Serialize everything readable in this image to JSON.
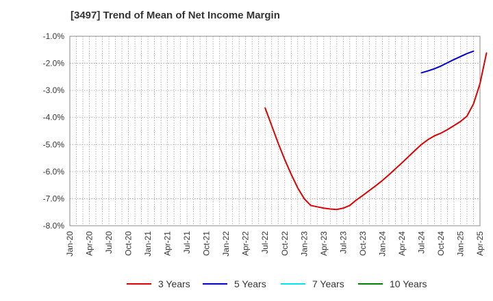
{
  "chart_data": {
    "type": "line",
    "title": "[3497]  Trend of Mean of Net Income Margin",
    "xlabel": "",
    "ylabel": "",
    "ylim": [
      -8.0,
      -1.0
    ],
    "y_ticks": [
      "-1.0%",
      "-2.0%",
      "-3.0%",
      "-4.0%",
      "-5.0%",
      "-6.0%",
      "-7.0%",
      "-8.0%"
    ],
    "x_ticks": [
      "Jan-20",
      "Apr-20",
      "Jul-20",
      "Oct-20",
      "Jan-21",
      "Apr-21",
      "Jul-21",
      "Oct-21",
      "Jan-22",
      "Apr-22",
      "Jul-22",
      "Oct-22",
      "Jan-23",
      "Apr-23",
      "Jul-23",
      "Oct-23",
      "Jan-24",
      "Apr-24",
      "Jul-24",
      "Oct-24",
      "Jan-25",
      "Apr-25"
    ],
    "x_start": "Jan-20",
    "grid": true,
    "legend_position": "bottom",
    "series": [
      {
        "name": "3 Years",
        "color": "#dd0000",
        "start_month_index": 30,
        "values": [
          -3.65,
          -4.3,
          -4.95,
          -5.55,
          -6.1,
          -6.6,
          -7.0,
          -7.25,
          -7.3,
          -7.35,
          -7.38,
          -7.4,
          -7.35,
          -7.25,
          -7.05,
          -6.88,
          -6.7,
          -6.52,
          -6.33,
          -6.12,
          -5.9,
          -5.68,
          -5.45,
          -5.22,
          -5.0,
          -4.82,
          -4.68,
          -4.58,
          -4.45,
          -4.3,
          -4.15,
          -3.95,
          -3.5,
          -2.75,
          -1.62
        ]
      },
      {
        "name": "5 Years",
        "color": "#0000cc",
        "start_month_index": 54,
        "values": [
          -2.35,
          -2.28,
          -2.2,
          -2.1,
          -1.98,
          -1.86,
          -1.75,
          -1.64,
          -1.55
        ]
      },
      {
        "name": "7 Years",
        "color": "#00e5ee",
        "start_month_index": 0,
        "values": []
      },
      {
        "name": "10 Years",
        "color": "#008000",
        "start_month_index": 0,
        "values": []
      }
    ]
  }
}
